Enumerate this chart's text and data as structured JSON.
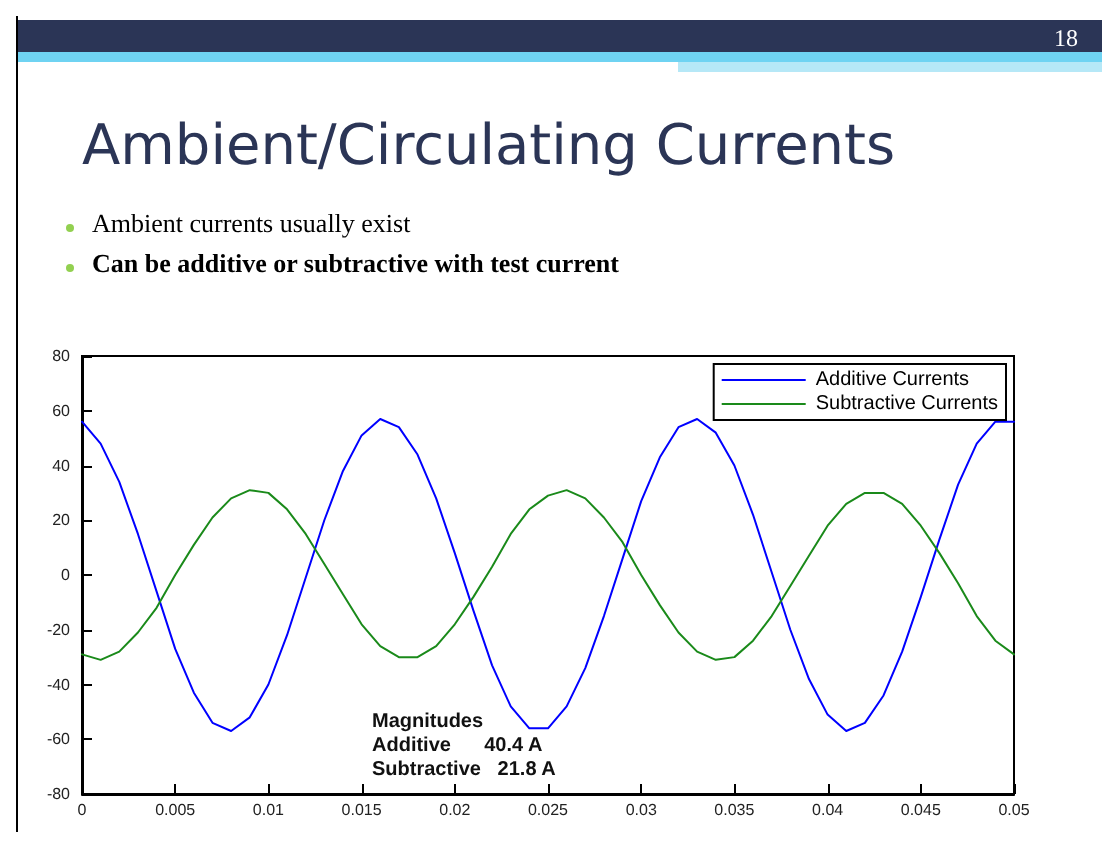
{
  "chart_data": {
    "type": "line",
    "title": "Ambient/Circulating Currents",
    "annotations": [
      "18",
      "Ambient currents usually exist",
      "Can be additive or subtractive with test current",
      "Magnitudes",
      "Additive      40.4 A",
      "Subtractive   21.8 A"
    ],
    "x": [
      0,
      0.001,
      0.002,
      0.003,
      0.004,
      0.005,
      0.006,
      0.007,
      0.008,
      0.009,
      0.01,
      0.011,
      0.012,
      0.013,
      0.014,
      0.015,
      0.016,
      0.017,
      0.018,
      0.019,
      0.02,
      0.021,
      0.022,
      0.023,
      0.024,
      0.025,
      0.026,
      0.027,
      0.028,
      0.029,
      0.03,
      0.031,
      0.032,
      0.033,
      0.034,
      0.035,
      0.036,
      0.037,
      0.038,
      0.039,
      0.04,
      0.041,
      0.042,
      0.043,
      0.044,
      0.045,
      0.046,
      0.047,
      0.048,
      0.049,
      0.05
    ],
    "series": [
      {
        "name": "Additive Currents",
        "color": "#0000ff",
        "values": [
          56,
          48,
          34,
          15,
          -6,
          -27,
          -43,
          -54,
          -57,
          -52,
          -40,
          -22,
          -1,
          20,
          38,
          51,
          57,
          54,
          44,
          28,
          8,
          -13,
          -33,
          -48,
          -56,
          -56,
          -48,
          -34,
          -15,
          6,
          27,
          43,
          54,
          57,
          52,
          40,
          22,
          1,
          -20,
          -38,
          -51,
          -57,
          -54,
          -44,
          -28,
          -8,
          13,
          33,
          48,
          56,
          56
        ]
      },
      {
        "name": "Subtractive Currents",
        "color": "#1a8a1a",
        "values": [
          -29,
          -31,
          -28,
          -21,
          -12,
          0,
          11,
          21,
          28,
          31,
          30,
          24,
          15,
          4,
          -7,
          -18,
          -26,
          -30,
          -30,
          -26,
          -18,
          -8,
          3,
          15,
          24,
          29,
          31,
          28,
          21,
          12,
          0,
          -11,
          -21,
          -28,
          -31,
          -30,
          -24,
          -15,
          -4,
          7,
          18,
          26,
          30,
          30,
          26,
          18,
          8,
          -3,
          -15,
          -24,
          -29
        ]
      }
    ],
    "xlim": [
      0,
      0.05
    ],
    "xticks": [
      0,
      0.005,
      0.01,
      0.015,
      0.02,
      0.025,
      0.03,
      0.035,
      0.04,
      0.045,
      0.05
    ],
    "ylim": [
      -80,
      80
    ],
    "yticks": [
      -80,
      -60,
      -40,
      -20,
      0,
      20,
      40,
      60,
      80
    ],
    "grid": false,
    "legend": "top right",
    "marker": "none",
    "line_style": "solid"
  }
}
